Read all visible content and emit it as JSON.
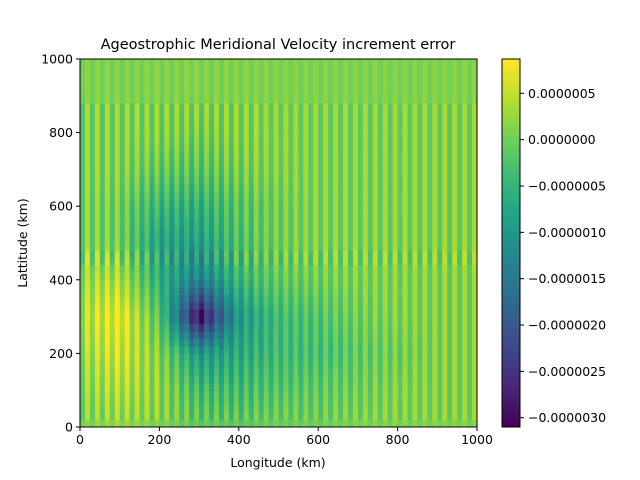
{
  "chart_data": {
    "type": "heatmap",
    "title": "Ageostrophic Meridional Velocity increment error",
    "xlabel": "Longitude (km)",
    "ylabel": "Lattitude (km)",
    "xlim": [
      0,
      1000
    ],
    "ylim": [
      0,
      1000
    ],
    "xticks": [
      "0",
      "200",
      "400",
      "600",
      "800",
      "1000"
    ],
    "yticks": [
      "0",
      "200",
      "400",
      "600",
      "800",
      "1000"
    ],
    "colormap": "viridis",
    "color_range": [
      -3.1e-06,
      8.7e-07
    ],
    "colorbar_ticks": [
      {
        "value": 5e-07,
        "label": "0.0000005"
      },
      {
        "value": 0,
        "label": "0.0000000"
      },
      {
        "value": -5e-07,
        "label": "−0.0000005"
      },
      {
        "value": -1e-06,
        "label": "−0.0000010"
      },
      {
        "value": -1.5e-06,
        "label": "−0.0000015"
      },
      {
        "value": -2e-06,
        "label": "−0.0000020"
      },
      {
        "value": -2.5e-06,
        "label": "−0.0000025"
      },
      {
        "value": -3e-06,
        "label": "−0.0000030"
      }
    ],
    "grid_x": [
      0,
      100,
      200,
      300,
      400,
      500,
      600,
      700,
      800,
      900,
      1000
    ],
    "grid_y": [
      0,
      100,
      200,
      300,
      400,
      500,
      600,
      700,
      800,
      900,
      1000
    ],
    "values": [
      [
        1e-07,
        2e-07,
        1e-07,
        -1e-07,
        -1e-07,
        0,
        0,
        1e-07,
        1e-07,
        1e-07,
        1e-07
      ],
      [
        2e-07,
        4e-07,
        2e-07,
        -4e-07,
        -4e-07,
        -2e-07,
        -1e-07,
        0,
        1e-07,
        1e-07,
        1e-07
      ],
      [
        3e-07,
        6e-07,
        1e-07,
        -1e-06,
        -7e-07,
        -4e-07,
        -3e-07,
        -1e-07,
        0,
        1e-07,
        1e-07
      ],
      [
        4e-07,
        8e-07,
        -2e-07,
        -3.1e-06,
        -1e-06,
        -4e-07,
        -2e-07,
        0,
        1e-07,
        1e-07,
        1e-07
      ],
      [
        3e-07,
        4e-07,
        -6e-07,
        -1.4e-06,
        -5e-07,
        -1e-07,
        0,
        1e-07,
        1e-07,
        1e-07,
        1e-07
      ],
      [
        1e-07,
        0,
        -8e-07,
        -9e-07,
        -3e-07,
        0,
        1e-07,
        1e-07,
        1e-07,
        1e-07,
        1e-07
      ],
      [
        1e-07,
        0,
        -5e-07,
        -6e-07,
        -2e-07,
        0,
        1e-07,
        1e-07,
        1e-07,
        1e-07,
        1e-07
      ],
      [
        1e-07,
        1e-07,
        -1e-07,
        -2e-07,
        0,
        1e-07,
        1e-07,
        1e-07,
        1e-07,
        1e-07,
        1e-07
      ],
      [
        1e-07,
        1e-07,
        1e-07,
        0,
        1e-07,
        1e-07,
        1e-07,
        1e-07,
        1e-07,
        1e-07,
        1e-07
      ],
      [
        1e-07,
        1e-07,
        1e-07,
        1e-07,
        1e-07,
        1e-07,
        1e-07,
        1e-07,
        1e-07,
        1e-07,
        1e-07
      ],
      [
        1e-07,
        1e-07,
        1e-07,
        1e-07,
        1e-07,
        1e-07,
        1e-07,
        1e-07,
        1e-07,
        1e-07,
        1e-07
      ]
    ],
    "column_oscillation_amplitude": 3e-07,
    "grid": false
  }
}
